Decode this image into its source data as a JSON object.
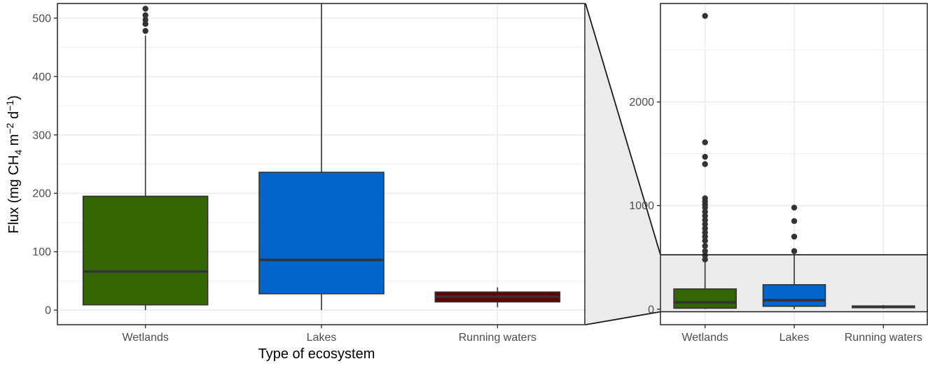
{
  "chart_data": [
    {
      "type": "box",
      "panel": "main (zoomed)",
      "categories": [
        "Wetlands",
        "Lakes",
        "Running waters"
      ],
      "ylim": [
        -25,
        525
      ],
      "yticks": [
        0,
        100,
        200,
        300,
        400,
        500
      ],
      "xlabel": "Type of ecosystem",
      "ylabel_parts": [
        "Flux (mg CH",
        "4",
        " m",
        "−2",
        " d",
        "−1",
        ")"
      ],
      "grid": true,
      "boxes": [
        {
          "category": "Wetlands",
          "fill": "#336600",
          "q1": 9,
          "median": 66,
          "q3": 195,
          "whisker_low": 0,
          "whisker_high": 470,
          "outliers": [
            478,
            490,
            497,
            505,
            516
          ]
        },
        {
          "category": "Lakes",
          "fill": "#0066CC",
          "q1": 28,
          "median": 86,
          "q3": 236,
          "whisker_low": 0,
          "whisker_high": 525,
          "outliers": []
        },
        {
          "category": "Running waters",
          "fill": "#660000",
          "q1": 14,
          "median": 23,
          "q3": 31,
          "whisker_low": 5,
          "whisker_high": 39,
          "outliers": []
        }
      ]
    },
    {
      "type": "box",
      "panel": "inset (full range)",
      "categories": [
        "Wetlands",
        "Lakes",
        "Running waters"
      ],
      "ylim": [
        -150,
        2950
      ],
      "yticks": [
        0,
        1000,
        2000
      ],
      "zoom_range": [
        -25,
        525
      ],
      "grid": true,
      "boxes": [
        {
          "category": "Wetlands",
          "fill": "#336600",
          "q1": 9,
          "median": 66,
          "q3": 195,
          "whisker_low": 0,
          "whisker_high": 470,
          "outliers": [
            480,
            520,
            560,
            610,
            660,
            700,
            740,
            780,
            820,
            860,
            900,
            940,
            980,
            1010,
            1040,
            1070,
            1400,
            1470,
            1610,
            2830
          ]
        },
        {
          "category": "Lakes",
          "fill": "#0066CC",
          "q1": 28,
          "median": 86,
          "q3": 236,
          "whisker_low": 0,
          "whisker_high": 530,
          "outliers": [
            560,
            700,
            850,
            980
          ]
        },
        {
          "category": "Running waters",
          "fill": "#660000",
          "q1": 14,
          "median": 23,
          "q3": 31,
          "whisker_low": 5,
          "whisker_high": 39,
          "outliers": []
        }
      ]
    }
  ],
  "colors": {
    "outlier": "#333333",
    "median": "#333333",
    "grid": "#ebebeb",
    "panel_border": "#333333",
    "zoom_fill": "#ebebeb"
  }
}
